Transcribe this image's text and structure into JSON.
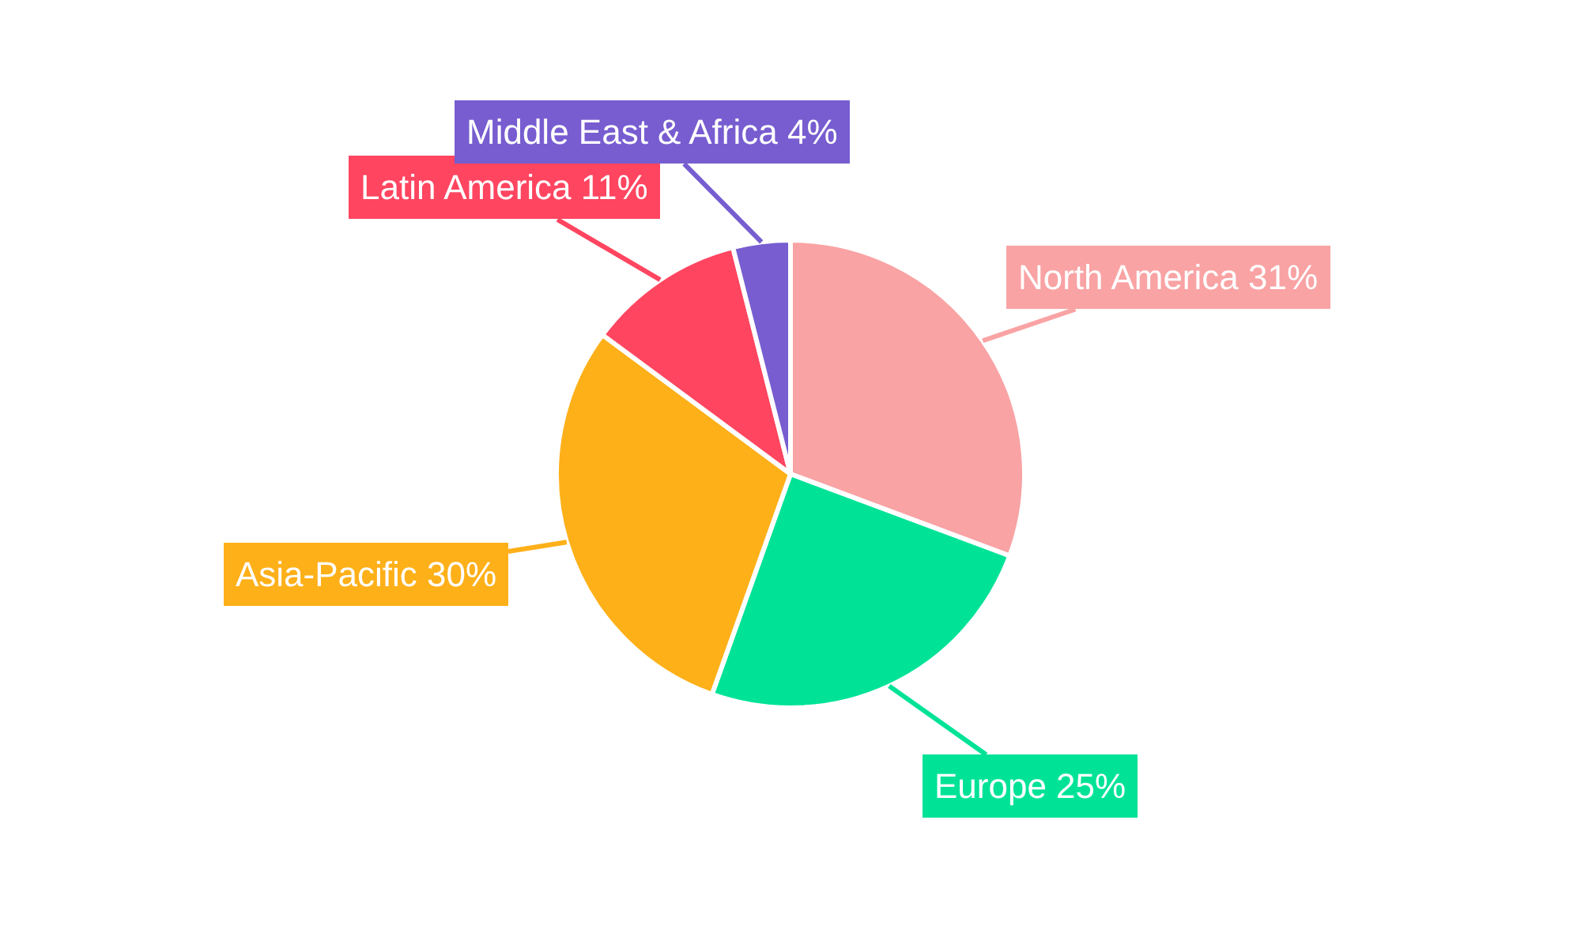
{
  "chart_data": {
    "type": "pie",
    "categories": [
      "North America",
      "Europe",
      "Asia-Pacific",
      "Latin America",
      "Middle East & Africa"
    ],
    "values": [
      31,
      25,
      30,
      11,
      4
    ],
    "value_labels": [
      "31%",
      "25%",
      "30%",
      "11%",
      "4%"
    ],
    "colors": [
      "#f9a3a4",
      "#00e396",
      "#feb019",
      "#ff4560",
      "#775dd0"
    ],
    "legend": false
  }
}
